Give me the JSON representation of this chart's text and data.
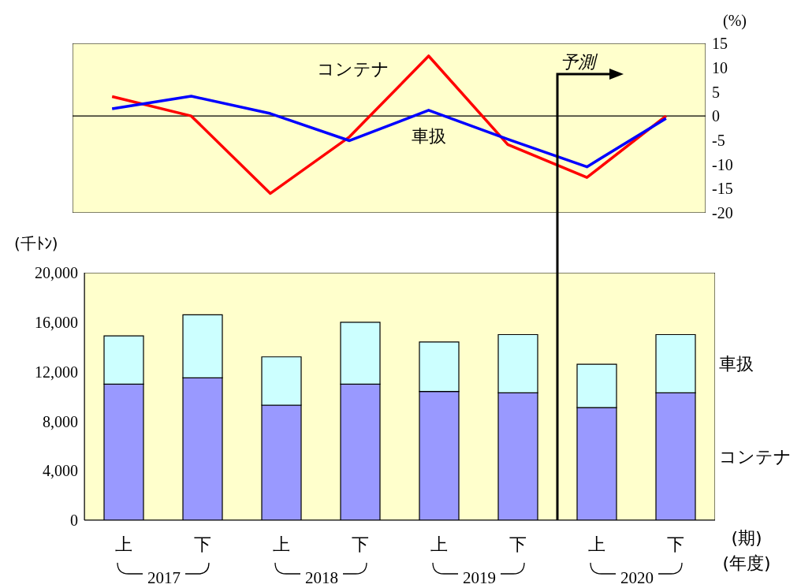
{
  "chart_data": [
    {
      "type": "line",
      "categories": [
        null,
        null,
        null,
        null,
        null,
        null,
        null,
        null
      ],
      "ylabel": "(%)",
      "ylim": [
        -20,
        15
      ],
      "yticks": [
        -20,
        -15,
        -10,
        -5,
        0,
        5,
        10,
        15
      ],
      "tick_labels": "y",
      "grid": false,
      "legend": false,
      "marker": "none",
      "line_style": "solid",
      "series": [
        {
          "name": "コンテナ",
          "color": "#ff0000",
          "values": [
            4,
            0,
            -16,
            -4.3,
            12.4,
            -5.9,
            -12.7,
            0
          ]
        },
        {
          "name": "車扱",
          "color": "#0000ff",
          "values": [
            1.5,
            4.1,
            0.5,
            -5.1,
            1.2,
            -4.8,
            -10.5,
            -0.5
          ]
        }
      ],
      "ref_lines": [
        {
          "axis": "y",
          "value": 0,
          "color": "#000000"
        }
      ],
      "annotations": [
        "予測"
      ]
    },
    {
      "type": "bar",
      "stacked": true,
      "categories": [
        "上",
        "下",
        "上",
        "下",
        "上",
        "下",
        "上",
        "下"
      ],
      "xlabel": "(期)",
      "ylabel": "(千ﾄﾝ)",
      "ylim": [
        0,
        20000
      ],
      "yticks": [
        {
          "value": 0,
          "label": "0"
        },
        {
          "value": 4000,
          "label": "4,000"
        },
        {
          "value": 8000,
          "label": "8,000"
        },
        {
          "value": 12000,
          "label": "12,000"
        },
        {
          "value": 16000,
          "label": "16,000"
        },
        {
          "value": 20000,
          "label": "20,000"
        }
      ],
      "grid": false,
      "legend": false,
      "series": [
        {
          "name": "コンテナ",
          "color": "#9999ff",
          "values": [
            11000,
            11500,
            9300,
            11000,
            10400,
            10300,
            9100,
            10300
          ]
        },
        {
          "name": "車扱",
          "color": "#ccffff",
          "values": [
            3900,
            5100,
            3900,
            5000,
            4000,
            4700,
            3500,
            4700
          ]
        }
      ],
      "annotations": [
        "2017",
        "2018",
        "2019",
        "2020",
        "(年度)"
      ]
    }
  ]
}
